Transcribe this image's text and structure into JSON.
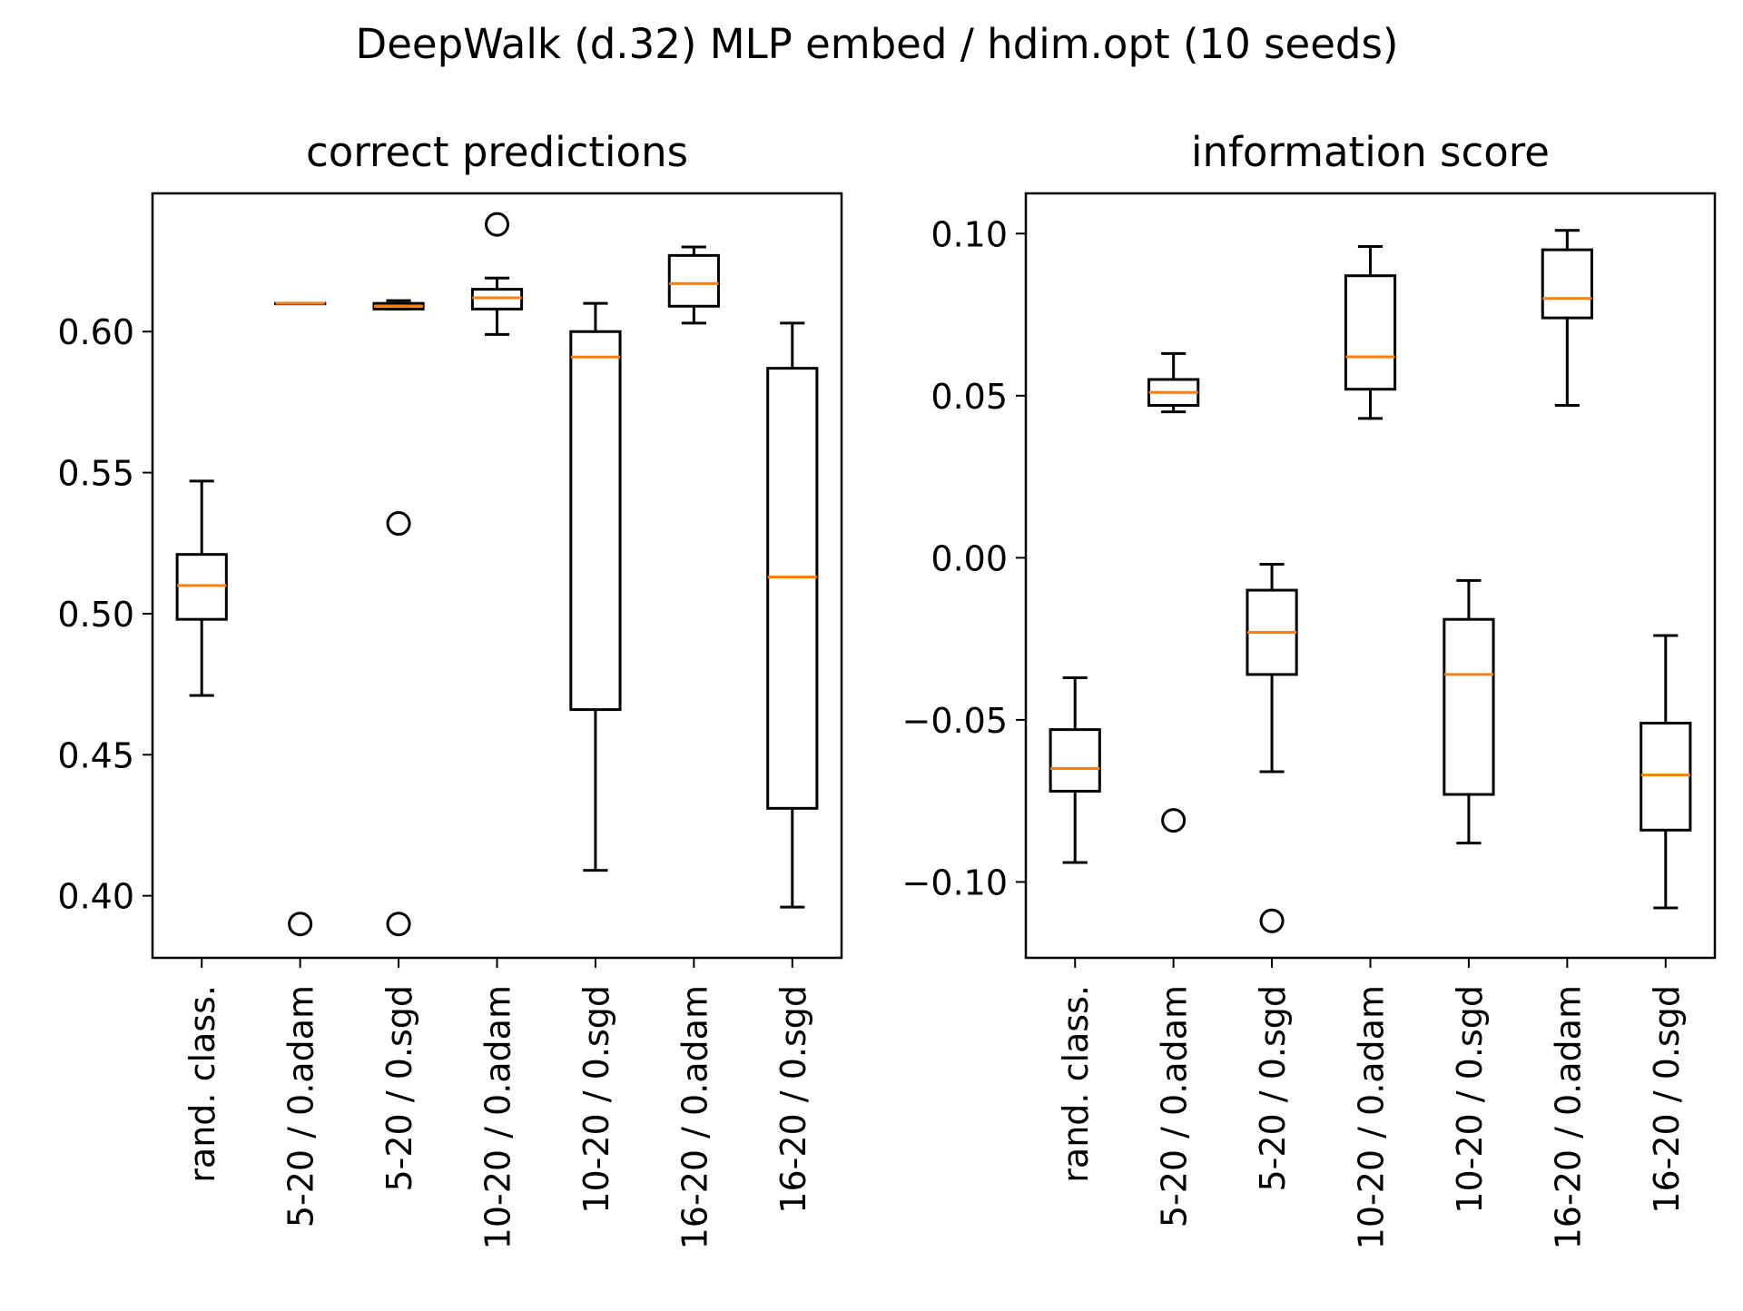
{
  "suptitle": "DeepWalk (d.32) MLP embed / hdim.opt  (10 seeds)",
  "colors": {
    "box": "#000000",
    "median": "#ff7f0e",
    "background": "#ffffff"
  },
  "chart_data": [
    {
      "type": "box",
      "title": "correct predictions",
      "categories": [
        "rand. class.",
        "5-20 / 0.adam",
        "5-20 / 0.sgd",
        "10-20 / 0.adam",
        "10-20 / 0.sgd",
        "16-20 / 0.adam",
        "16-20 / 0.sgd"
      ],
      "ylim": [
        0.378,
        0.649
      ],
      "yticks": [
        "0.40",
        "0.45",
        "0.50",
        "0.55",
        "0.60"
      ],
      "ytick_values": [
        0.4,
        0.45,
        0.5,
        0.55,
        0.6
      ],
      "boxes": [
        {
          "whislo": 0.471,
          "q1": 0.498,
          "med": 0.51,
          "q3": 0.521,
          "whishi": 0.547,
          "fliers": []
        },
        {
          "whislo": 0.61,
          "q1": 0.61,
          "med": 0.61,
          "q3": 0.61,
          "whishi": 0.61,
          "fliers": [
            0.39
          ]
        },
        {
          "whislo": 0.608,
          "q1": 0.608,
          "med": 0.609,
          "q3": 0.61,
          "whishi": 0.611,
          "fliers": [
            0.532,
            0.39
          ]
        },
        {
          "whislo": 0.599,
          "q1": 0.608,
          "med": 0.612,
          "q3": 0.615,
          "whishi": 0.619,
          "fliers": [
            0.638
          ]
        },
        {
          "whislo": 0.409,
          "q1": 0.466,
          "med": 0.591,
          "q3": 0.6,
          "whishi": 0.61,
          "fliers": []
        },
        {
          "whislo": 0.603,
          "q1": 0.609,
          "med": 0.617,
          "q3": 0.627,
          "whishi": 0.63,
          "fliers": []
        },
        {
          "whislo": 0.396,
          "q1": 0.431,
          "med": 0.513,
          "q3": 0.587,
          "whishi": 0.603,
          "fliers": []
        }
      ]
    },
    {
      "type": "box",
      "title": "information score",
      "categories": [
        "rand. class.",
        "5-20 / 0.adam",
        "5-20 / 0.sgd",
        "10-20 / 0.adam",
        "10-20 / 0.sgd",
        "16-20 / 0.adam",
        "16-20 / 0.sgd"
      ],
      "ylim": [
        -0.1234,
        0.1124
      ],
      "yticks": [
        "−0.10",
        "−0.05",
        "0.00",
        "0.05",
        "0.10"
      ],
      "ytick_values": [
        -0.1,
        -0.05,
        0.0,
        0.05,
        0.1
      ],
      "boxes": [
        {
          "whislo": -0.094,
          "q1": -0.072,
          "med": -0.065,
          "q3": -0.053,
          "whishi": -0.037,
          "fliers": []
        },
        {
          "whislo": 0.045,
          "q1": 0.047,
          "med": 0.051,
          "q3": 0.055,
          "whishi": 0.063,
          "fliers": [
            -0.081
          ]
        },
        {
          "whislo": -0.066,
          "q1": -0.036,
          "med": -0.023,
          "q3": -0.01,
          "whishi": -0.002,
          "fliers": [
            -0.112
          ]
        },
        {
          "whislo": 0.043,
          "q1": 0.052,
          "med": 0.062,
          "q3": 0.087,
          "whishi": 0.096,
          "fliers": []
        },
        {
          "whislo": -0.088,
          "q1": -0.073,
          "med": -0.036,
          "q3": -0.019,
          "whishi": -0.007,
          "fliers": []
        },
        {
          "whislo": 0.047,
          "q1": 0.074,
          "med": 0.08,
          "q3": 0.095,
          "whishi": 0.101,
          "fliers": []
        },
        {
          "whislo": -0.108,
          "q1": -0.084,
          "med": -0.067,
          "q3": -0.051,
          "whishi": -0.024,
          "fliers": []
        }
      ]
    }
  ]
}
